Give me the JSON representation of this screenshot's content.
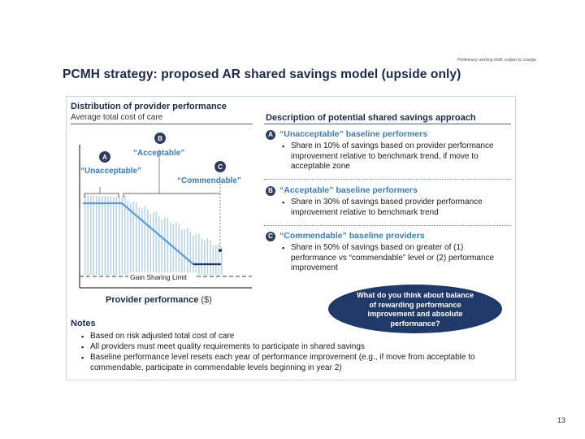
{
  "draft_note": "Preliminary working draft; subject to change",
  "title": "PCMH strategy: proposed AR shared savings model (upside only)",
  "left_panel": {
    "title": "Distribution of provider performance",
    "subtitle": "Average total cost of care",
    "x_axis_label": "Provider performance",
    "x_axis_unit": "($)",
    "gain_sharing_label": "Gain Sharing Limit",
    "zones": [
      {
        "badge": "A",
        "label": "“Unacceptable”"
      },
      {
        "badge": "B",
        "label": "“Acceptable”"
      },
      {
        "badge": "C",
        "label": "“Commendable”"
      }
    ]
  },
  "right_panel": {
    "title": "Description of potential shared savings approach",
    "sections": [
      {
        "badge": "A",
        "title": "“Unacceptable” baseline performers",
        "bullets": [
          "Share in 10% of savings based on provider performance improvement relative to benchmark trend, if move to acceptable zone"
        ]
      },
      {
        "badge": "B",
        "title": "“Acceptable” baseline performers",
        "bullets": [
          "Share in 30% of savings based provider performance improvement relative to benchmark trend"
        ]
      },
      {
        "badge": "C",
        "title": "“Commendable” baseline providers",
        "bullets": [
          "Share in 50% of savings based on greater of (1) performance vs “commendable” level or (2) performance improvement"
        ]
      }
    ]
  },
  "question": "What do you think about balance of rewarding performance improvement and absolute performance?",
  "notes": {
    "title": "Notes",
    "items": [
      "Based on risk adjusted total cost of care",
      "All providers must meet quality requirements to participate in shared savings",
      "Baseline performance level resets each year of performance improvement (e.g., if move from acceptable to commendable, participate in commendable levels beginning in year 2)"
    ]
  },
  "page_number": "13"
}
